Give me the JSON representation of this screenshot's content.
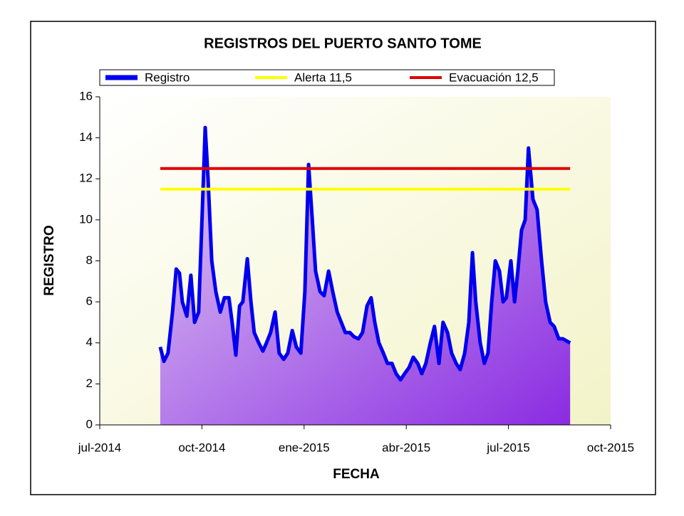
{
  "chart_data": {
    "type": "area-line",
    "title": "REGISTROS DEL PUERTO SANTO TOME",
    "xlabel": "FECHA",
    "ylabel": "REGISTRO",
    "xlim": [
      2014.5,
      2015.75
    ],
    "xticks": [
      {
        "value": 2014.5,
        "label": "jul-2014"
      },
      {
        "value": 2014.75,
        "label": "oct-2014"
      },
      {
        "value": 2015.0,
        "label": "ene-2015"
      },
      {
        "value": 2015.25,
        "label": "abr-2015"
      },
      {
        "value": 2015.5,
        "label": "jul-2015"
      },
      {
        "value": 2015.75,
        "label": "oct-2015"
      }
    ],
    "ylim": [
      0,
      16
    ],
    "yticks": [
      0,
      2,
      4,
      6,
      8,
      10,
      12,
      14,
      16
    ],
    "series": [
      {
        "name": "Registro",
        "color": "#0000ee",
        "fill": true,
        "x": [
          2014.648,
          2014.657,
          2014.667,
          2014.678,
          2014.687,
          2014.695,
          2014.702,
          2014.713,
          2014.723,
          2014.732,
          2014.742,
          2014.751,
          2014.758,
          2014.765,
          2014.774,
          2014.784,
          2014.795,
          2014.805,
          2014.816,
          2014.824,
          2014.833,
          2014.842,
          2014.85,
          2014.861,
          2014.87,
          2014.878,
          2014.889,
          2014.899,
          2014.908,
          2014.918,
          2014.929,
          2014.939,
          2014.95,
          2014.96,
          2014.971,
          2014.981,
          2014.992,
          2015.002,
          2015.011,
          2015.02,
          2015.028,
          2015.039,
          2015.049,
          2015.06,
          2015.07,
          2015.081,
          2015.091,
          2015.101,
          2015.112,
          2015.122,
          2015.133,
          2015.143,
          2015.154,
          2015.164,
          2015.173,
          2015.183,
          2015.194,
          2015.204,
          2015.215,
          2015.225,
          2015.236,
          2015.246,
          2015.257,
          2015.267,
          2015.278,
          2015.288,
          2015.298,
          2015.309,
          2015.319,
          2015.33,
          2015.34,
          2015.351,
          2015.361,
          2015.372,
          2015.382,
          2015.393,
          2015.403,
          2015.412,
          2015.42,
          2015.431,
          2015.441,
          2015.45,
          2015.459,
          2015.468,
          2015.478,
          2015.487,
          2015.495,
          2015.506,
          2015.515,
          2015.523,
          2015.532,
          2015.541,
          2015.549,
          2015.56,
          2015.57,
          2015.581,
          2015.591,
          2015.602,
          2015.612,
          2015.623,
          2015.633,
          2015.651
        ],
        "values": [
          3.8,
          3.1,
          3.5,
          5.5,
          7.6,
          7.4,
          6.0,
          5.3,
          7.3,
          5.0,
          5.5,
          10.5,
          14.5,
          12.0,
          8.0,
          6.5,
          5.5,
          6.2,
          6.2,
          5.0,
          3.4,
          5.8,
          6.0,
          8.1,
          6.0,
          4.5,
          4.0,
          3.6,
          4.0,
          4.5,
          5.5,
          3.5,
          3.2,
          3.5,
          4.6,
          3.8,
          3.5,
          6.5,
          12.7,
          10.0,
          7.5,
          6.5,
          6.3,
          7.5,
          6.5,
          5.5,
          5.0,
          4.5,
          4.5,
          4.3,
          4.2,
          4.5,
          5.8,
          6.2,
          5.0,
          4.0,
          3.5,
          3.0,
          3.0,
          2.5,
          2.2,
          2.5,
          2.8,
          3.3,
          3.0,
          2.5,
          3.0,
          4.0,
          4.8,
          3.0,
          5.0,
          4.5,
          3.5,
          3.0,
          2.7,
          3.5,
          5.0,
          8.4,
          6.0,
          4.0,
          3.0,
          3.5,
          6.0,
          8.0,
          7.5,
          6.0,
          6.2,
          8.0,
          6.0,
          7.5,
          9.5,
          10.0,
          13.5,
          11.0,
          10.5,
          8.0,
          6.0,
          5.0,
          4.8,
          4.2,
          4.2,
          4.0
        ]
      },
      {
        "name": "Alerta 11,5",
        "color": "#ffff00",
        "x": [
          2014.648,
          2015.651
        ],
        "values": [
          11.5,
          11.5
        ]
      },
      {
        "name": "Evacuación 12,5",
        "color": "#e00000",
        "x": [
          2014.648,
          2015.651
        ],
        "values": [
          12.5,
          12.5
        ]
      }
    ]
  }
}
